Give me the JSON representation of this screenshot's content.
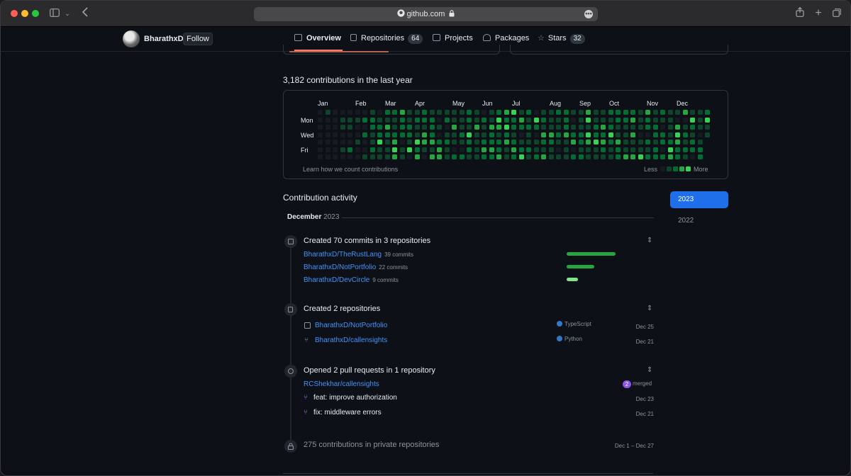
{
  "browser": {
    "url": "github.com",
    "more_glyph": "•••"
  },
  "profile": {
    "username": "BharathxD",
    "follow_label": "Follow"
  },
  "nav": {
    "tabs": [
      {
        "label": "Overview",
        "count": ""
      },
      {
        "label": "Repositories",
        "count": "64"
      },
      {
        "label": "Projects",
        "count": ""
      },
      {
        "label": "Packages",
        "count": ""
      },
      {
        "label": "Stars",
        "count": "32"
      }
    ]
  },
  "contributions": {
    "title": "3,182 contributions in the last year",
    "months": [
      "Jan",
      "Feb",
      "Mar",
      "Apr",
      "May",
      "Jun",
      "Jul",
      "Aug",
      "Sep",
      "Oct",
      "Nov",
      "Dec"
    ],
    "weekdays": [
      "Mon",
      "Wed",
      "Fri"
    ],
    "learn_link": "Learn how we count contributions",
    "legend_less": "Less",
    "legend_more": "More",
    "colors": [
      "#161b22",
      "#0e4429",
      "#006d32",
      "#26a641",
      "#39d353"
    ]
  },
  "activity": {
    "title": "Contribution activity",
    "years": [
      "2023",
      "2022"
    ],
    "month_label": "December",
    "month_year": "2023",
    "commits": {
      "title": "Created 70 commits in 3 repositories",
      "repos": [
        {
          "name": "BharathxD/TheRustLang",
          "meta": "39 commits",
          "share": 1.0
        },
        {
          "name": "BharathxD/NotPortfolio",
          "meta": "22 commits",
          "share": 0.56
        },
        {
          "name": "BharathxD/DevCircle",
          "meta": "9 commits",
          "share": 0.23
        }
      ]
    },
    "created_repos": {
      "title": "Created 2 repositories",
      "repos": [
        {
          "name": "BharathxD/NotPortfolio",
          "language": "TypeScript",
          "date": "Dec 25"
        },
        {
          "name": "BharathxD/callensights",
          "language": "Python",
          "date": "Dec 21"
        }
      ]
    },
    "pull_requests": {
      "title": "Opened 2 pull requests in 1 repository",
      "repo": "RCShekhar/callensights",
      "merged_count": "2",
      "merged_label": "merged",
      "items": [
        {
          "title": "feat: improve authorization",
          "date": "Dec 23"
        },
        {
          "title": "fix: middleware errors",
          "date": "Dec 21"
        }
      ]
    },
    "private": {
      "text": "275 contributions in private repositories",
      "range": "Dec 1 – Dec 27"
    }
  }
}
